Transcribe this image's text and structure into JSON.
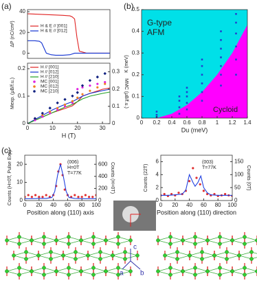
{
  "panel_labels": [
    "(a)",
    "(b)",
    "(c)"
  ],
  "structure_labels": [
    "a",
    "b",
    "c"
  ],
  "chart_data": [
    {
      "type": "line",
      "ylabel": "ΔP (nC/cm²)",
      "xlim": [
        0,
        35
      ],
      "ylim": [
        -5,
        42
      ],
      "yticks": [
        0,
        20,
        40
      ],
      "legend": "left",
      "series": [
        {
          "name": "H & E // [001]",
          "color": "#e02020",
          "mode": "line",
          "x": [
            0,
            5,
            10,
            15,
            18,
            19,
            20,
            21,
            22,
            25,
            30,
            35
          ],
          "values": [
            38,
            37.5,
            37,
            36.5,
            36,
            35,
            33,
            15,
            2,
            0,
            0,
            0
          ]
        },
        {
          "name": "H & E // [012]",
          "color": "#1030d0",
          "mode": "line",
          "x": [
            0,
            3,
            5,
            6,
            7,
            8,
            10,
            12,
            15,
            18,
            20,
            25,
            35
          ],
          "values": [
            12,
            12,
            11.5,
            10,
            5,
            0,
            -1.5,
            -2,
            -2,
            -1.5,
            0,
            0,
            0
          ]
        }
      ]
    },
    {
      "type": "line",
      "xlabel": "H (T)",
      "ylabel": "Mexp. (μB/f.u.)",
      "y2label": "MMC (μB/f.u.)",
      "xlim": [
        0,
        33
      ],
      "xticks": [
        0,
        10,
        20,
        30
      ],
      "ylim": [
        0,
        0.22
      ],
      "yticks": [
        0,
        0.1,
        0.2
      ],
      "y2lim": [
        0,
        0.35
      ],
      "y2ticks": [
        0,
        0.1,
        0.2,
        0.3
      ],
      "legend": "left",
      "series": [
        {
          "name": "H // [001]",
          "color": "#e02020",
          "mode": "line",
          "x": [
            0,
            5,
            10,
            15,
            18,
            20,
            22,
            25,
            30,
            33
          ],
          "values": [
            0,
            0.02,
            0.04,
            0.055,
            0.065,
            0.08,
            0.1,
            0.11,
            0.125,
            0.13
          ]
        },
        {
          "name": "H // [012]",
          "color": "#1030d0",
          "mode": "line",
          "x": [
            0,
            5,
            10,
            15,
            18,
            20,
            22,
            25,
            30,
            33
          ],
          "values": [
            0,
            0.025,
            0.05,
            0.07,
            0.08,
            0.09,
            0.1,
            0.11,
            0.12,
            0.125
          ]
        },
        {
          "name": "H // [210]",
          "color": "#20a020",
          "mode": "line",
          "x": [
            0,
            5,
            10,
            15,
            18,
            20,
            22,
            25,
            30,
            33
          ],
          "values": [
            0,
            0.02,
            0.04,
            0.06,
            0.07,
            0.08,
            0.09,
            0.1,
            0.11,
            0.115
          ]
        },
        {
          "name": "MC [001]",
          "color": "#e020e0",
          "mode": "markers",
          "marker": "circle",
          "axis": "y2",
          "x": [
            0,
            3,
            6,
            9,
            12,
            15,
            18,
            20,
            22,
            25,
            28,
            31
          ],
          "values": [
            0,
            0.02,
            0.04,
            0.06,
            0.08,
            0.1,
            0.12,
            0.2,
            0.21,
            0.22,
            0.23,
            0.24
          ]
        },
        {
          "name": "MC [012]",
          "color": "#f08020",
          "mode": "markers",
          "marker": "circle",
          "axis": "y2",
          "x": [
            0,
            3,
            6,
            9,
            12,
            15,
            18,
            20,
            22,
            25,
            28,
            31
          ],
          "values": [
            0,
            0.03,
            0.05,
            0.07,
            0.09,
            0.11,
            0.13,
            0.15,
            0.17,
            0.19,
            0.21,
            0.23
          ]
        },
        {
          "name": "MC [210]",
          "color": "#102080",
          "mode": "markers",
          "marker": "diamond",
          "axis": "y2",
          "x": [
            0,
            3,
            6,
            9,
            12,
            15,
            18,
            20,
            22,
            25,
            28,
            31
          ],
          "values": [
            0,
            0.03,
            0.06,
            0.09,
            0.12,
            0.14,
            0.16,
            0.18,
            0.22,
            0.25,
            0.27,
            0.29
          ]
        }
      ]
    },
    {
      "type": "scatter",
      "xlabel": "Du (meV)",
      "ylabel": "K (meV)",
      "xlim": [
        0,
        1.4
      ],
      "xticks": [
        0,
        0.2,
        0.4,
        0.6,
        0.8,
        1,
        1.2,
        1.4
      ],
      "ylim": [
        0,
        0.5
      ],
      "yticks": [
        0,
        0.1,
        0.2,
        0.3,
        0.4,
        0.5
      ],
      "background": "#00e0e8",
      "annotations": [
        "G-type",
        "AFM",
        "Cycloid"
      ],
      "series": [
        {
          "color": "#ff00ff",
          "mode": "area",
          "x": [
            0,
            0.2,
            0.4,
            0.6,
            0.8,
            1,
            1.2,
            1.4
          ],
          "values": [
            0,
            0,
            0.02,
            0.06,
            0.12,
            0.2,
            0.3,
            0.43
          ]
        },
        {
          "color": "#2040d0",
          "mode": "markers",
          "marker": "square",
          "x": [
            0.2,
            0.2,
            0.2,
            0.5,
            0.5,
            0.5,
            0.5,
            0.6,
            0.6,
            0.6,
            0.6,
            0.6,
            0.8,
            0.8,
            0.8,
            0.8,
            0.8,
            0.8,
            1.05,
            1.05,
            1.05,
            1.05,
            1.05,
            1.05,
            1.05,
            1.25,
            1.25,
            1.25,
            1.25,
            1.25,
            1.25
          ],
          "values": [
            0.005,
            0.015,
            0.03,
            0.02,
            0.05,
            0.08,
            0.1,
            0.04,
            0.07,
            0.1,
            0.12,
            0.14,
            0.08,
            0.12,
            0.16,
            0.2,
            0.24,
            0.27,
            0.15,
            0.2,
            0.24,
            0.28,
            0.32,
            0.36,
            0.4,
            0.2,
            0.27,
            0.33,
            0.39,
            0.44,
            0.48
          ]
        }
      ]
    },
    {
      "type": "line",
      "xlabel": "Position along (110) axis",
      "ylabel": "Counts (H=0T, Pulse Exp)",
      "y2label": "Counts (H=0T)",
      "xlim": [
        0,
        100
      ],
      "xticks": [
        0,
        20,
        40,
        60,
        80,
        100
      ],
      "ylim": [
        0,
        25
      ],
      "yticks": [
        0,
        10,
        20
      ],
      "y2lim": [
        0,
        750
      ],
      "y2ticks": [
        0,
        200,
        400,
        600
      ],
      "annotations": [
        "(006)",
        "H=0T",
        "T=77K"
      ],
      "series": [
        {
          "color": "#e03030",
          "mode": "markers",
          "marker": "circle",
          "x": [
            0,
            5,
            10,
            15,
            20,
            25,
            30,
            35,
            40,
            44,
            47,
            50,
            53,
            56,
            60,
            65,
            70,
            75,
            80,
            85,
            90,
            95,
            100
          ],
          "values": [
            2,
            3,
            2,
            3,
            2,
            2,
            3,
            2,
            3,
            8,
            16,
            20,
            14,
            6,
            3,
            2,
            3,
            2,
            2,
            3,
            2,
            2,
            3
          ]
        },
        {
          "color": "#2040e0",
          "mode": "line",
          "axis": "y2",
          "x": [
            0,
            10,
            20,
            30,
            38,
            42,
            46,
            50,
            54,
            58,
            62,
            70,
            80,
            90,
            100
          ],
          "values": [
            30,
            30,
            35,
            35,
            50,
            150,
            420,
            600,
            400,
            150,
            50,
            35,
            30,
            30,
            30
          ]
        }
      ]
    },
    {
      "type": "line",
      "xlabel": "Position along (110) direction",
      "ylabel": "Counts (22T)",
      "y2label": "Counts (0T)",
      "xlim": [
        0,
        100
      ],
      "xticks": [
        0,
        20,
        40,
        60,
        80,
        100
      ],
      "ylim": [
        0,
        7
      ],
      "yticks": [
        0,
        2,
        4,
        6
      ],
      "y2lim": [
        0,
        175
      ],
      "y2ticks": [
        0,
        50,
        100,
        150
      ],
      "annotations": [
        "(003)",
        "T=77K"
      ],
      "series": [
        {
          "color": "#e03030",
          "mode": "markers",
          "marker": "circle",
          "x": [
            0,
            5,
            10,
            15,
            20,
            25,
            30,
            35,
            40,
            45,
            50,
            55,
            60,
            65,
            70,
            75,
            80,
            85,
            90,
            95,
            100
          ],
          "values": [
            0.8,
            1,
            0.7,
            1,
            0.8,
            1.2,
            1,
            1.5,
            3,
            5,
            3.5,
            2.5,
            1.5,
            1,
            0.8,
            1,
            0.7,
            0.8,
            1,
            0.8,
            0.7
          ]
        },
        {
          "color": "#2040e0",
          "mode": "line",
          "axis": "y2",
          "x": [
            0,
            10,
            20,
            30,
            35,
            40,
            45,
            48,
            52,
            56,
            60,
            65,
            70,
            80,
            90,
            100
          ],
          "values": [
            20,
            20,
            22,
            25,
            40,
            100,
            70,
            55,
            70,
            95,
            50,
            30,
            22,
            20,
            20,
            20
          ]
        }
      ]
    }
  ]
}
